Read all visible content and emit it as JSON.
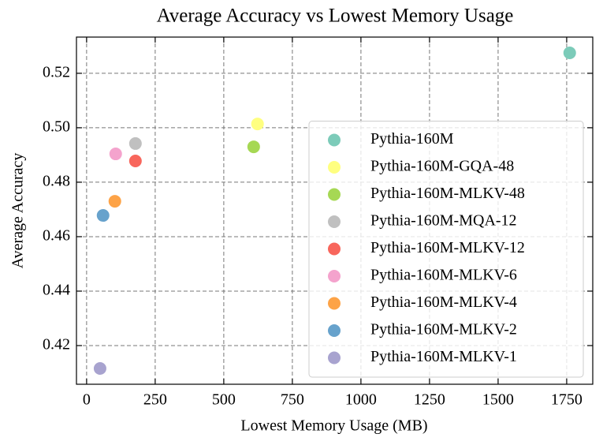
{
  "chart_data": {
    "type": "scatter",
    "title": "Average Accuracy vs Lowest Memory Usage",
    "x_label": "Lowest Memory Usage (MB)",
    "y_label": "Average Accuracy",
    "xlim": [
      -37,
      1845
    ],
    "ylim": [
      0.4058,
      0.5333
    ],
    "xticks": [
      0,
      250,
      500,
      750,
      1000,
      1250,
      1500,
      1750
    ],
    "yticks": [
      0.42,
      0.44,
      0.46,
      0.48,
      {
        "value": 0.5,
        "label": "0.50"
      },
      0.52
    ],
    "grid": true,
    "legend": "lower right",
    "series": [
      {
        "name": "Pythia-160M",
        "color": "#7ccbb9",
        "x": [
          1761
        ],
        "values": [
          0.5275
        ]
      },
      {
        "name": "Pythia-160M-GQA-48",
        "color": "#ffff80",
        "x": [
          623
        ],
        "values": [
          0.5014
        ]
      },
      {
        "name": "Pythia-160M-MLKV-48",
        "color": "#a6d854",
        "x": [
          609
        ],
        "values": [
          0.493
        ]
      },
      {
        "name": "Pythia-160M-MQA-12",
        "color": "#c0c0c0",
        "x": [
          178
        ],
        "values": [
          0.4942
        ]
      },
      {
        "name": "Pythia-160M-MLKV-12",
        "color": "#f8665c",
        "x": [
          178
        ],
        "values": [
          0.4878
        ]
      },
      {
        "name": "Pythia-160M-MLKV-6",
        "color": "#f4a3cd",
        "x": [
          106
        ],
        "values": [
          0.4904
        ]
      },
      {
        "name": "Pythia-160M-MLKV-4",
        "color": "#fda347",
        "x": [
          103
        ],
        "values": [
          0.473
        ]
      },
      {
        "name": "Pythia-160M-MLKV-2",
        "color": "#67a2cc",
        "x": [
          60
        ],
        "values": [
          0.4678
        ]
      },
      {
        "name": "Pythia-160M-MLKV-1",
        "color": "#a8a3cf",
        "x": [
          49
        ],
        "values": [
          0.4116
        ]
      }
    ]
  }
}
